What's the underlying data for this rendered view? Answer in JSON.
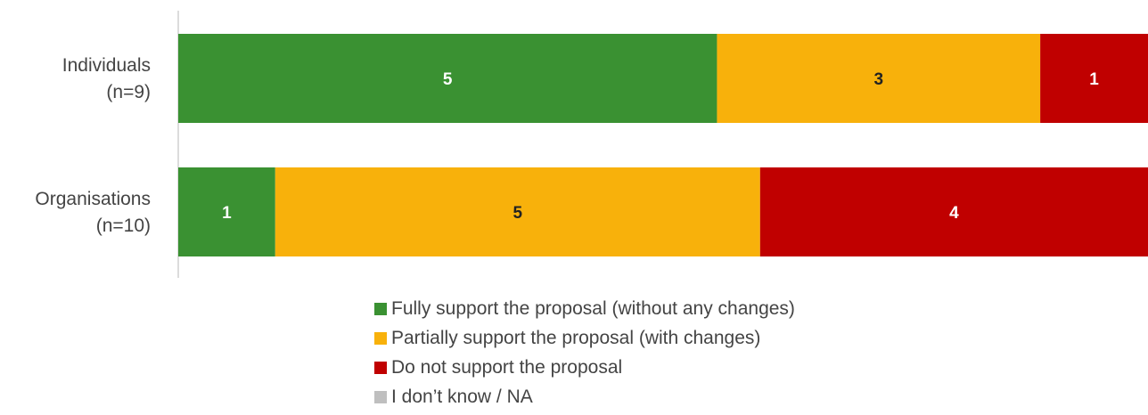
{
  "chart_data": {
    "type": "bar",
    "orientation": "horizontal",
    "stacked": true,
    "categories": [
      [
        "Individuals",
        "(n=9)"
      ],
      [
        "Organisations",
        "(n=10)"
      ]
    ],
    "series": [
      {
        "name": "Fully support the proposal (without any changes)",
        "color": "#3a9132",
        "label_color": "#ffffff",
        "values": [
          5,
          1
        ]
      },
      {
        "name": "Partially support the proposal (with changes)",
        "color": "#f8b10b",
        "label_color": "#222222",
        "values": [
          3,
          5
        ]
      },
      {
        "name": "Do not support the proposal",
        "color": "#c00000",
        "label_color": "#ffffff",
        "values": [
          1,
          4
        ]
      },
      {
        "name": "I don’t know / NA",
        "color": "#bfbfbf",
        "label_color": "#222222",
        "values": [
          0,
          0
        ]
      }
    ],
    "normalized": true,
    "grid": false,
    "legend_position": "bottom"
  }
}
